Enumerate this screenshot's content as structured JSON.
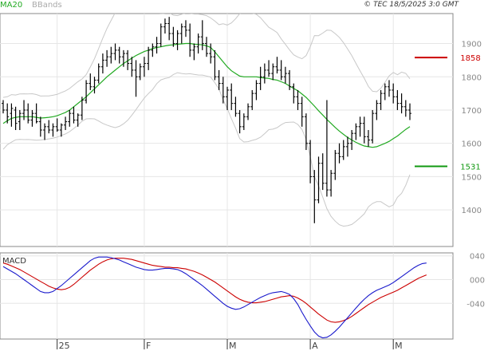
{
  "header": {
    "copyright": "© TEC 18/5/2025 3:0 GMT",
    "legend_ma": "MA20",
    "legend_bb": "BBands"
  },
  "chart_data": [
    {
      "type": "ohlc",
      "title": "",
      "x_tick_labels": [
        "25",
        "F",
        "M",
        "A",
        "M"
      ],
      "y_ticks": [
        1400,
        1500,
        1600,
        1700,
        1800,
        1900
      ],
      "ylim": [
        1290,
        1990
      ],
      "grid": true,
      "legend": "top-left",
      "colors": {
        "ma": "#22aa22",
        "bbands": "#c8c8c8",
        "bars": "#000000",
        "resistance": "#cc0000",
        "support": "#119911"
      },
      "levels": [
        {
          "label": "1858",
          "value": 1858,
          "color": "#cc0000"
        },
        {
          "label": "1531",
          "value": 1531,
          "color": "#119911"
        }
      ],
      "series": [
        {
          "name": "MA20",
          "values": [
            1660,
            1668,
            1675,
            1678,
            1680,
            1680,
            1680,
            1680,
            1678,
            1676,
            1677,
            1678,
            1680,
            1683,
            1688,
            1693,
            1700,
            1710,
            1720,
            1730,
            1740,
            1752,
            1764,
            1776,
            1788,
            1800,
            1810,
            1820,
            1830,
            1840,
            1848,
            1856,
            1864,
            1870,
            1876,
            1880,
            1885,
            1888,
            1890,
            1893,
            1895,
            1896,
            1898,
            1899,
            1900,
            1900,
            1898,
            1897,
            1896,
            1893,
            1888,
            1875,
            1860,
            1845,
            1830,
            1818,
            1810,
            1802,
            1800,
            1800,
            1800,
            1800,
            1798,
            1796,
            1795,
            1792,
            1790,
            1785,
            1780,
            1772,
            1765,
            1758,
            1748,
            1738,
            1725,
            1712,
            1698,
            1685,
            1672,
            1660,
            1648,
            1637,
            1627,
            1618,
            1610,
            1603,
            1597,
            1592,
            1590,
            1588,
            1590,
            1595,
            1600,
            1606,
            1614,
            1622,
            1632,
            1642,
            1650
          ]
        },
        {
          "name": "BBands",
          "values": []
        },
        {
          "name": "MACD",
          "values": [
            22,
            18,
            14,
            10,
            5,
            0,
            -5,
            -10,
            -15,
            -20,
            -22,
            -22,
            -20,
            -15,
            -10,
            -4,
            2,
            8,
            14,
            20,
            26,
            32,
            36,
            38,
            38,
            38,
            37,
            35,
            33,
            30,
            27,
            24,
            21,
            19,
            17,
            16,
            16,
            17,
            18,
            19,
            19,
            18,
            17,
            14,
            10,
            5,
            0,
            -5,
            -10,
            -16,
            -22,
            -28,
            -34,
            -40,
            -45,
            -48,
            -50,
            -49,
            -46,
            -42,
            -38,
            -34,
            -30,
            -27,
            -24,
            -22,
            -21,
            -20,
            -22,
            -25,
            -32,
            -42,
            -55,
            -67,
            -78,
            -88,
            -95,
            -98,
            -97,
            -93,
            -87,
            -80,
            -72,
            -64,
            -56,
            -48,
            -40,
            -33,
            -27,
            -22,
            -18,
            -15,
            -12,
            -9,
            -5,
            0,
            5,
            10,
            15,
            20,
            24,
            27,
            28
          ]
        },
        {
          "name": "Signal",
          "values": [
            28,
            26,
            23,
            20,
            17,
            13,
            9,
            5,
            1,
            -3,
            -7,
            -11,
            -14,
            -16,
            -17,
            -16,
            -13,
            -8,
            -2,
            4,
            10,
            16,
            21,
            26,
            30,
            33,
            35,
            36,
            36,
            36,
            35,
            34,
            32,
            30,
            28,
            26,
            24,
            23,
            22,
            21,
            21,
            20,
            20,
            19,
            18,
            16,
            14,
            11,
            8,
            4,
            0,
            -4,
            -9,
            -14,
            -19,
            -24,
            -29,
            -33,
            -36,
            -38,
            -39,
            -39,
            -38,
            -37,
            -35,
            -33,
            -31,
            -29,
            -28,
            -27,
            -28,
            -31,
            -35,
            -40,
            -46,
            -52,
            -58,
            -63,
            -68,
            -71,
            -72,
            -71,
            -69,
            -66,
            -62,
            -57,
            -52,
            -47,
            -42,
            -38,
            -34,
            -30,
            -27,
            -24,
            -21,
            -18,
            -14,
            -10,
            -6,
            -2,
            2,
            5,
            8
          ]
        }
      ],
      "ohlc": [
        [
          1720,
          1730,
          1690,
          1700
        ],
        [
          1700,
          1720,
          1660,
          1680
        ],
        [
          1690,
          1720,
          1650,
          1705
        ],
        [
          1700,
          1710,
          1640,
          1660
        ],
        [
          1665,
          1700,
          1640,
          1690
        ],
        [
          1690,
          1730,
          1670,
          1700
        ],
        [
          1700,
          1720,
          1660,
          1670
        ],
        [
          1670,
          1700,
          1650,
          1690
        ],
        [
          1690,
          1720,
          1660,
          1665
        ],
        [
          1665,
          1680,
          1620,
          1640
        ],
        [
          1640,
          1660,
          1610,
          1650
        ],
        [
          1650,
          1670,
          1630,
          1640
        ],
        [
          1640,
          1660,
          1620,
          1650
        ],
        [
          1650,
          1675,
          1635,
          1640
        ],
        [
          1640,
          1660,
          1620,
          1655
        ],
        [
          1655,
          1680,
          1640,
          1665
        ],
        [
          1665,
          1700,
          1650,
          1690
        ],
        [
          1690,
          1710,
          1660,
          1670
        ],
        [
          1670,
          1690,
          1650,
          1685
        ],
        [
          1685,
          1740,
          1670,
          1730
        ],
        [
          1730,
          1790,
          1720,
          1780
        ],
        [
          1780,
          1810,
          1760,
          1770
        ],
        [
          1770,
          1800,
          1750,
          1790
        ],
        [
          1790,
          1840,
          1780,
          1830
        ],
        [
          1830,
          1870,
          1810,
          1850
        ],
        [
          1850,
          1880,
          1830,
          1860
        ],
        [
          1860,
          1890,
          1840,
          1870
        ],
        [
          1870,
          1900,
          1850,
          1880
        ],
        [
          1880,
          1890,
          1840,
          1860
        ],
        [
          1860,
          1880,
          1830,
          1870
        ],
        [
          1870,
          1880,
          1820,
          1840
        ],
        [
          1840,
          1860,
          1800,
          1820
        ],
        [
          1820,
          1850,
          1740,
          1800
        ],
        [
          1800,
          1840,
          1790,
          1830
        ],
        [
          1830,
          1860,
          1800,
          1840
        ],
        [
          1840,
          1890,
          1820,
          1880
        ],
        [
          1880,
          1900,
          1860,
          1890
        ],
        [
          1890,
          1920,
          1870,
          1900
        ],
        [
          1900,
          1960,
          1890,
          1950
        ],
        [
          1950,
          1975,
          1930,
          1960
        ],
        [
          1960,
          1980,
          1910,
          1930
        ],
        [
          1930,
          1950,
          1890,
          1900
        ],
        [
          1900,
          1940,
          1880,
          1930
        ],
        [
          1930,
          1960,
          1900,
          1950
        ],
        [
          1950,
          1970,
          1920,
          1940
        ],
        [
          1940,
          1960,
          1860,
          1880
        ],
        [
          1880,
          1900,
          1850,
          1890
        ],
        [
          1890,
          1930,
          1870,
          1920
        ],
        [
          1920,
          1970,
          1880,
          1900
        ],
        [
          1900,
          1920,
          1860,
          1870
        ],
        [
          1870,
          1900,
          1840,
          1860
        ],
        [
          1860,
          1880,
          1790,
          1800
        ],
        [
          1800,
          1820,
          1760,
          1780
        ],
        [
          1780,
          1800,
          1720,
          1740
        ],
        [
          1740,
          1770,
          1700,
          1760
        ],
        [
          1760,
          1780,
          1700,
          1720
        ],
        [
          1720,
          1740,
          1680,
          1690
        ],
        [
          1690,
          1700,
          1630,
          1650
        ],
        [
          1650,
          1690,
          1640,
          1680
        ],
        [
          1680,
          1720,
          1670,
          1710
        ],
        [
          1710,
          1760,
          1700,
          1750
        ],
        [
          1750,
          1790,
          1730,
          1780
        ],
        [
          1780,
          1830,
          1760,
          1800
        ],
        [
          1800,
          1840,
          1780,
          1820
        ],
        [
          1820,
          1850,
          1800,
          1810
        ],
        [
          1810,
          1840,
          1790,
          1830
        ],
        [
          1830,
          1860,
          1810,
          1820
        ],
        [
          1820,
          1850,
          1790,
          1800
        ],
        [
          1800,
          1830,
          1780,
          1810
        ],
        [
          1810,
          1820,
          1760,
          1770
        ],
        [
          1770,
          1780,
          1720,
          1740
        ],
        [
          1740,
          1760,
          1700,
          1720
        ],
        [
          1720,
          1740,
          1650,
          1680
        ],
        [
          1680,
          1690,
          1580,
          1600
        ],
        [
          1600,
          1610,
          1480,
          1500
        ],
        [
          1500,
          1520,
          1360,
          1430
        ],
        [
          1430,
          1560,
          1420,
          1540
        ],
        [
          1540,
          1570,
          1460,
          1480
        ],
        [
          1480,
          1730,
          1440,
          1460
        ],
        [
          1460,
          1520,
          1440,
          1510
        ],
        [
          1510,
          1580,
          1490,
          1570
        ],
        [
          1570,
          1600,
          1540,
          1560
        ],
        [
          1560,
          1610,
          1550,
          1590
        ],
        [
          1590,
          1620,
          1560,
          1600
        ],
        [
          1600,
          1640,
          1580,
          1630
        ],
        [
          1630,
          1660,
          1610,
          1650
        ],
        [
          1650,
          1680,
          1620,
          1660
        ],
        [
          1660,
          1680,
          1600,
          1620
        ],
        [
          1620,
          1640,
          1590,
          1610
        ],
        [
          1610,
          1700,
          1600,
          1690
        ],
        [
          1690,
          1730,
          1670,
          1720
        ],
        [
          1720,
          1760,
          1700,
          1750
        ],
        [
          1750,
          1780,
          1730,
          1770
        ],
        [
          1770,
          1790,
          1740,
          1760
        ],
        [
          1760,
          1780,
          1720,
          1740
        ],
        [
          1740,
          1760,
          1700,
          1720
        ],
        [
          1720,
          1750,
          1690,
          1710
        ],
        [
          1710,
          1730,
          1680,
          1700
        ],
        [
          1700,
          1720,
          1670,
          1690
        ]
      ]
    },
    {
      "type": "line",
      "title": "MACD",
      "y_ticks": [
        40,
        0,
        -40
      ],
      "y_tick_labels": [
        "040",
        "000",
        "-040"
      ],
      "ylim": [
        -100,
        45
      ]
    }
  ]
}
